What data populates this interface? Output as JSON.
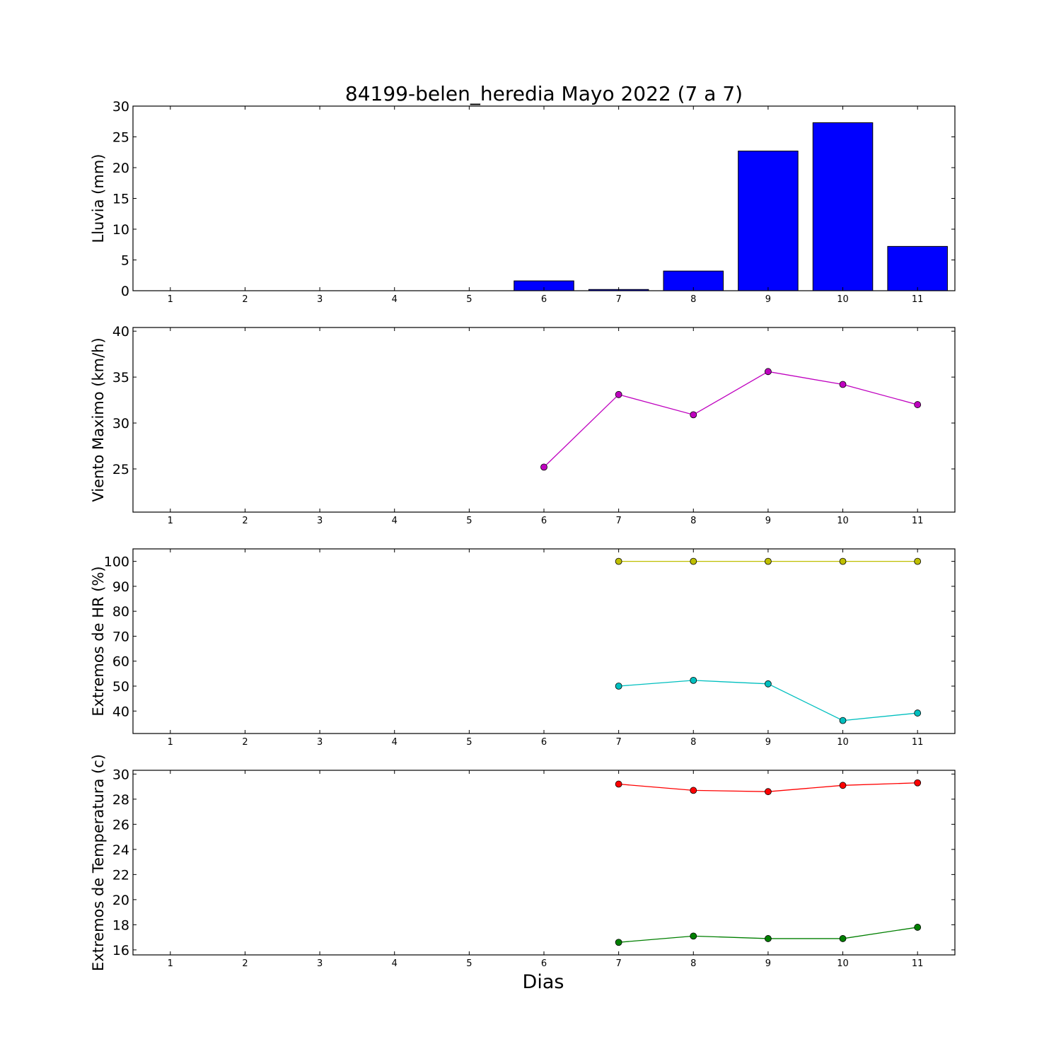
{
  "title": "84199-belen_heredia Mayo 2022  (7 a 7)",
  "xlabel": "Dias",
  "chart_data": [
    {
      "type": "bar",
      "ylabel": "Lluvia (mm)",
      "categories": [
        "1",
        "2",
        "3",
        "4",
        "5",
        "6",
        "7",
        "8",
        "9",
        "10",
        "11"
      ],
      "xlim": [
        0.5,
        11.5
      ],
      "ylim": [
        0,
        30
      ],
      "yticks": [
        0,
        5,
        10,
        15,
        20,
        25,
        30
      ],
      "grid": false,
      "series": [
        {
          "x": [
            6,
            7,
            8,
            9,
            10,
            11
          ],
          "values": [
            1.6,
            0.2,
            3.2,
            22.7,
            27.3,
            7.2
          ],
          "color": "#0000ff"
        }
      ]
    },
    {
      "type": "line",
      "ylabel": "Viento Maximo (km/h)",
      "categories": [
        "1",
        "2",
        "3",
        "4",
        "5",
        "6",
        "7",
        "8",
        "9",
        "10",
        "11"
      ],
      "xlim": [
        0.5,
        11.5
      ],
      "ylim": [
        20.3,
        40.4
      ],
      "yticks": [
        25,
        30,
        35,
        40
      ],
      "grid": false,
      "series": [
        {
          "x": [
            6,
            7,
            8,
            9,
            10,
            11
          ],
          "values": [
            25.2,
            33.1,
            30.9,
            35.6,
            34.2,
            32.0
          ],
          "color": "#bf00bf"
        }
      ]
    },
    {
      "type": "line",
      "ylabel": "Extremos de HR (%)",
      "categories": [
        "1",
        "2",
        "3",
        "4",
        "5",
        "6",
        "7",
        "8",
        "9",
        "10",
        "11"
      ],
      "xlim": [
        0.5,
        11.5
      ],
      "ylim": [
        31,
        105
      ],
      "yticks": [
        40,
        50,
        60,
        70,
        80,
        90,
        100
      ],
      "grid": false,
      "series": [
        {
          "x": [
            7,
            8,
            9,
            10,
            11
          ],
          "values": [
            100,
            100,
            100,
            100,
            100
          ],
          "color": "#bfbf00"
        },
        {
          "x": [
            7,
            8,
            9,
            10,
            11
          ],
          "values": [
            50.0,
            52.3,
            50.9,
            36.2,
            39.2
          ],
          "color": "#00bfbf"
        }
      ]
    },
    {
      "type": "line",
      "ylabel": "Extremos de Temperatura (c)",
      "categories": [
        "1",
        "2",
        "3",
        "4",
        "5",
        "6",
        "7",
        "8",
        "9",
        "10",
        "11"
      ],
      "xlim": [
        0.5,
        11.5
      ],
      "ylim": [
        15.6,
        30.3
      ],
      "yticks": [
        16,
        18,
        20,
        22,
        24,
        26,
        28,
        30
      ],
      "grid": false,
      "series": [
        {
          "x": [
            7,
            8,
            9,
            10,
            11
          ],
          "values": [
            29.2,
            28.7,
            28.6,
            29.1,
            29.3
          ],
          "color": "#ff0000"
        },
        {
          "x": [
            7,
            8,
            9,
            10,
            11
          ],
          "values": [
            16.6,
            17.1,
            16.9,
            16.9,
            17.8
          ],
          "color": "#007f00"
        }
      ]
    }
  ]
}
